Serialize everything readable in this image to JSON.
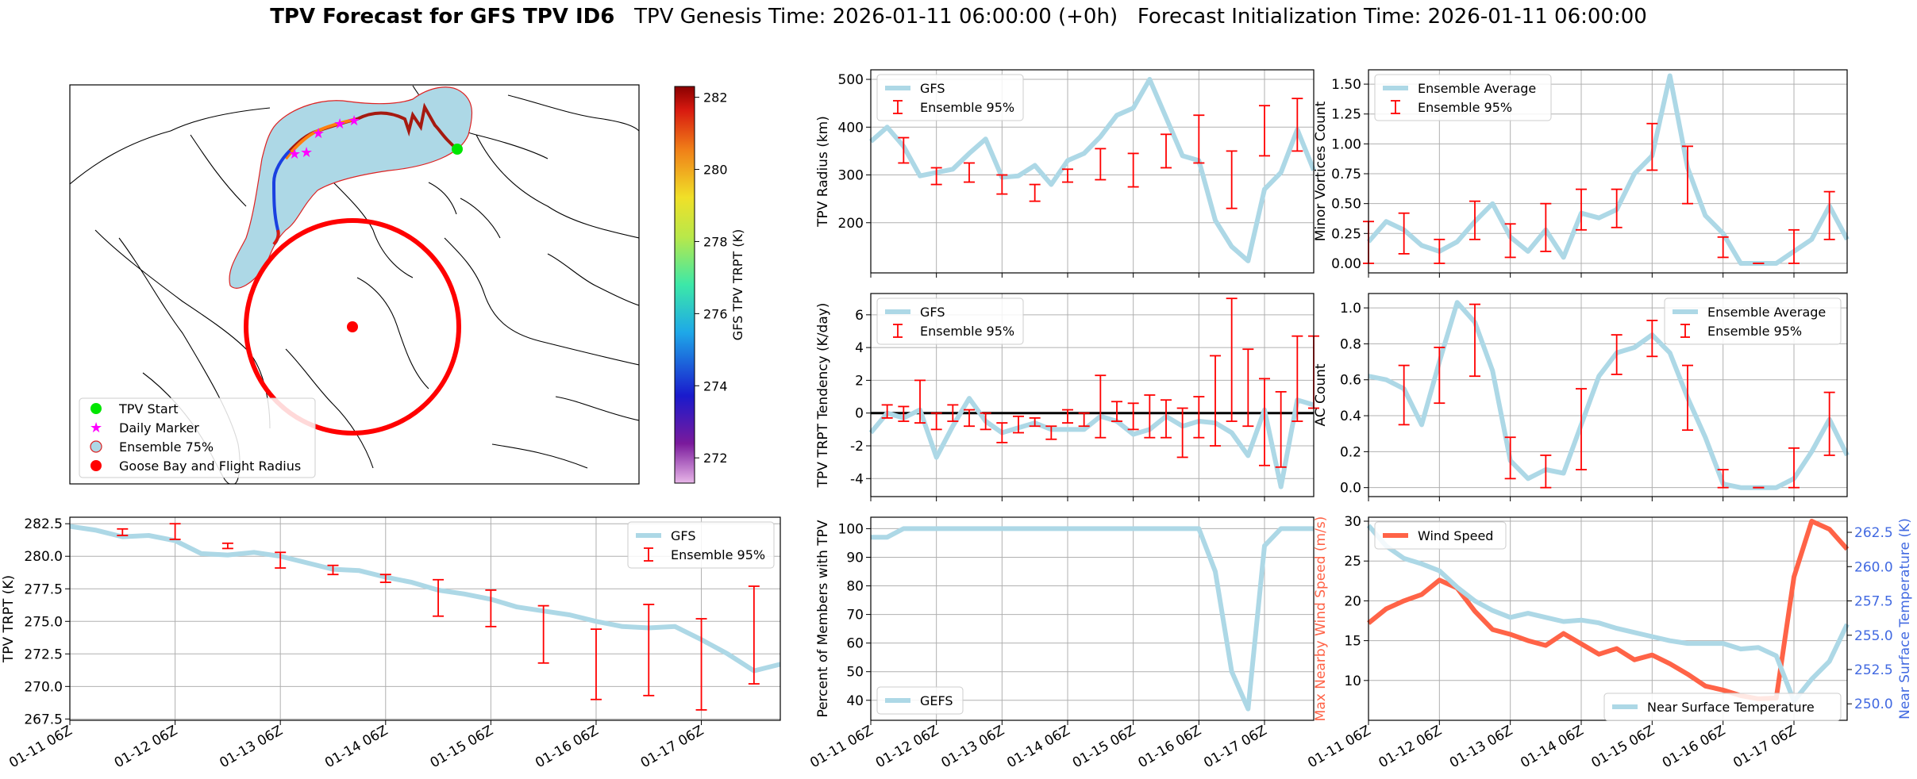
{
  "title": {
    "bold": "TPV Forecast for GFS TPV ID6",
    "genesis": "TPV Genesis Time: 2026-01-11 06:00:00 (+0h)",
    "init": "Forecast Initialization Time: 2026-01-11 06:00:00"
  },
  "colors": {
    "gfs": "#add8e6",
    "ensemble": "#ff0000",
    "wind": "#ff6347",
    "temp_axis": "#4169e1",
    "map_fill": "#add8e6",
    "grid": "#b0b0b0"
  },
  "map_panel": {
    "colorbar_label": "GFS TPV TRPT (K)",
    "colorbar_ticks": [
      272,
      274,
      276,
      278,
      280,
      282
    ],
    "legend": [
      "TPV Start",
      "Daily Marker",
      "Ensemble 75%",
      "Goose Bay and Flight Radius"
    ]
  },
  "chart_data": [
    {
      "id": "trpt",
      "type": "line",
      "title": "",
      "ylabel": "TPV TRPT (K)",
      "xlabel": "",
      "x_ticks": [
        "01-11 06Z",
        "01-12 06Z",
        "01-13 06Z",
        "01-14 06Z",
        "01-15 06Z",
        "01-16 06Z",
        "01-17 06Z"
      ],
      "xlim": [
        0,
        27
      ],
      "ylim": [
        267.4,
        283.0
      ],
      "y_ticks": [
        "267.5",
        "270.0",
        "272.5",
        "275.0",
        "277.5",
        "280.0",
        "282.5"
      ],
      "grid": true,
      "legend_position": "top-right",
      "series": [
        {
          "name": "GFS",
          "x": [
            0,
            1,
            2,
            3,
            4,
            5,
            6,
            7,
            8,
            9,
            10,
            11,
            12,
            13,
            14,
            15,
            16,
            17,
            18,
            19,
            20,
            21,
            22,
            23,
            24,
            25,
            26,
            27
          ],
          "values": [
            282.3,
            282.0,
            281.5,
            281.6,
            281.2,
            280.2,
            280.1,
            280.3,
            280.0,
            279.5,
            279.0,
            278.9,
            278.4,
            278.0,
            277.4,
            277.1,
            276.7,
            276.1,
            275.8,
            275.5,
            275.0,
            274.6,
            274.5,
            274.6,
            273.6,
            272.5,
            271.2,
            271.7
          ]
        }
      ],
      "ensemble": {
        "name": "Ensemble 95%",
        "x": [
          2,
          4,
          6,
          8,
          10,
          12,
          14,
          16,
          18,
          20,
          22,
          24,
          26
        ],
        "low": [
          281.6,
          281.3,
          280.6,
          279.1,
          278.6,
          278.0,
          275.4,
          274.6,
          271.8,
          269.0,
          269.3,
          268.2,
          270.2
        ],
        "high": [
          282.1,
          282.5,
          281.0,
          280.3,
          279.3,
          278.6,
          278.2,
          277.4,
          276.2,
          274.4,
          276.3,
          275.2,
          277.7
        ]
      }
    },
    {
      "id": "radius",
      "type": "line",
      "title": "",
      "ylabel": "TPV Radius (km)",
      "xlabel": "",
      "xlim": [
        0,
        27
      ],
      "ylim": [
        95,
        520
      ],
      "y_ticks": [
        "200",
        "300",
        "400",
        "500"
      ],
      "grid": true,
      "legend_position": "top-left",
      "series": [
        {
          "name": "GFS",
          "x": [
            0,
            1,
            2,
            3,
            4,
            5,
            6,
            7,
            8,
            9,
            10,
            11,
            12,
            13,
            14,
            15,
            16,
            17,
            18,
            19,
            20,
            21,
            22,
            23,
            24,
            25,
            26,
            27
          ],
          "values": [
            370,
            400,
            360,
            298,
            305,
            312,
            345,
            375,
            295,
            298,
            320,
            280,
            330,
            345,
            380,
            425,
            440,
            500,
            420,
            340,
            330,
            205,
            150,
            120,
            270,
            305,
            395,
            310
          ]
        }
      ],
      "ensemble": {
        "name": "Ensemble 95%",
        "x": [
          2,
          4,
          6,
          8,
          10,
          12,
          14,
          16,
          18,
          20,
          22,
          24,
          26
        ],
        "low": [
          325,
          280,
          285,
          260,
          245,
          285,
          290,
          275,
          315,
          325,
          230,
          340,
          350
        ],
        "high": [
          378,
          315,
          325,
          300,
          280,
          312,
          355,
          345,
          385,
          425,
          350,
          445,
          460
        ]
      }
    },
    {
      "id": "minor",
      "type": "line",
      "title": "",
      "ylabel": "Minor Vortices Count",
      "xlabel": "",
      "xlim": [
        0,
        27
      ],
      "ylim": [
        -0.08,
        1.62
      ],
      "y_ticks": [
        "0.00",
        "0.25",
        "0.50",
        "0.75",
        "1.00",
        "1.25",
        "1.50"
      ],
      "grid": true,
      "legend_position": "top-left",
      "series": [
        {
          "name": "Ensemble Average",
          "x": [
            0,
            1,
            2,
            3,
            4,
            5,
            6,
            7,
            8,
            9,
            10,
            11,
            12,
            13,
            14,
            15,
            16,
            17,
            18,
            19,
            20,
            21,
            22,
            23,
            24,
            25,
            26,
            27
          ],
          "values": [
            0.18,
            0.35,
            0.28,
            0.15,
            0.1,
            0.18,
            0.35,
            0.5,
            0.22,
            0.1,
            0.28,
            0.05,
            0.42,
            0.38,
            0.45,
            0.75,
            0.9,
            1.57,
            0.8,
            0.4,
            0.25,
            0.0,
            0.0,
            0.0,
            0.1,
            0.2,
            0.48,
            0.2
          ]
        }
      ],
      "ensemble": {
        "name": "Ensemble 95%",
        "x": [
          0,
          2,
          4,
          6,
          8,
          10,
          12,
          14,
          16,
          18,
          20,
          22,
          24,
          26
        ],
        "low": [
          0.0,
          0.08,
          0.0,
          0.2,
          0.05,
          0.1,
          0.28,
          0.3,
          0.78,
          0.5,
          0.05,
          0.0,
          0.0,
          0.2
        ],
        "high": [
          0.35,
          0.42,
          0.2,
          0.52,
          0.33,
          0.5,
          0.62,
          0.62,
          1.17,
          0.98,
          0.22,
          0.0,
          0.28,
          0.6
        ]
      }
    },
    {
      "id": "tendency",
      "type": "line",
      "title": "",
      "ylabel": "TPV TRPT Tendency (K/day)",
      "xlabel": "",
      "xlim": [
        0,
        27
      ],
      "ylim": [
        -5.1,
        7.3
      ],
      "y_ticks": [
        "-4",
        "-2",
        "0",
        "2",
        "4",
        "6"
      ],
      "grid": true,
      "legend_position": "top-left",
      "zero_line": true,
      "series": [
        {
          "name": "GFS",
          "x": [
            0,
            1,
            2,
            3,
            4,
            5,
            6,
            7,
            8,
            9,
            10,
            11,
            12,
            13,
            14,
            15,
            16,
            17,
            18,
            19,
            20,
            21,
            22,
            23,
            24,
            25,
            26,
            27
          ],
          "values": [
            -1.2,
            0.0,
            -0.3,
            0.2,
            -2.7,
            -0.8,
            0.9,
            -0.5,
            -1.2,
            -0.9,
            -0.6,
            -1.0,
            -1.0,
            -1.0,
            -0.2,
            -0.5,
            -1.3,
            -1.0,
            -0.2,
            -0.8,
            -0.5,
            -0.6,
            -1.2,
            -2.6,
            0.2,
            -4.5,
            0.8,
            0.5
          ]
        }
      ],
      "ensemble": {
        "name": "Ensemble 95%",
        "x": [
          1,
          2,
          3,
          4,
          5,
          6,
          7,
          8,
          9,
          10,
          11,
          12,
          13,
          14,
          15,
          16,
          17,
          18,
          19,
          20,
          21,
          22,
          23,
          24,
          25,
          26,
          27
        ],
        "low": [
          -0.3,
          -0.5,
          -0.6,
          -1.0,
          -0.5,
          -0.8,
          -1.0,
          -1.8,
          -1.2,
          -0.8,
          -1.6,
          -0.6,
          -0.8,
          -1.5,
          -0.5,
          -1.0,
          -1.5,
          -1.5,
          -2.7,
          -1.5,
          -2.0,
          -0.5,
          -0.8,
          -3.2,
          -3.3,
          -0.5,
          0.3
        ],
        "high": [
          0.5,
          0.4,
          2.0,
          0.0,
          0.5,
          0.2,
          0.0,
          -0.6,
          -0.2,
          -0.3,
          -0.8,
          0.2,
          0.0,
          2.3,
          0.7,
          0.6,
          1.1,
          0.8,
          0.3,
          1.0,
          3.5,
          7.0,
          3.9,
          2.1,
          1.3,
          4.7,
          4.7
        ]
      }
    },
    {
      "id": "ac",
      "type": "line",
      "title": "",
      "ylabel": "AC Count",
      "xlabel": "",
      "xlim": [
        0,
        27
      ],
      "ylim": [
        -0.05,
        1.08
      ],
      "y_ticks": [
        "0.0",
        "0.2",
        "0.4",
        "0.6",
        "0.8",
        "1.0"
      ],
      "grid": true,
      "legend_position": "top-right",
      "series": [
        {
          "name": "Ensemble Average",
          "x": [
            0,
            1,
            2,
            3,
            4,
            5,
            6,
            7,
            8,
            9,
            10,
            11,
            12,
            13,
            14,
            15,
            16,
            17,
            18,
            19,
            20,
            21,
            22,
            23,
            24,
            25,
            26,
            27
          ],
          "values": [
            0.62,
            0.6,
            0.55,
            0.35,
            0.7,
            1.03,
            0.92,
            0.65,
            0.15,
            0.05,
            0.1,
            0.08,
            0.35,
            0.62,
            0.75,
            0.78,
            0.85,
            0.75,
            0.5,
            0.28,
            0.02,
            0.0,
            0.0,
            0.0,
            0.05,
            0.2,
            0.38,
            0.18
          ]
        }
      ],
      "ensemble": {
        "name": "Ensemble 95%",
        "x": [
          2,
          4,
          6,
          8,
          10,
          12,
          14,
          16,
          18,
          20,
          22,
          24,
          26
        ],
        "low": [
          0.35,
          0.47,
          0.62,
          0.05,
          0.0,
          0.1,
          0.63,
          0.73,
          0.32,
          0.0,
          0.0,
          0.0,
          0.18
        ],
        "high": [
          0.68,
          0.78,
          1.02,
          0.28,
          0.18,
          0.55,
          0.85,
          0.93,
          0.68,
          0.1,
          0.0,
          0.22,
          0.53
        ]
      }
    },
    {
      "id": "percent",
      "type": "line",
      "title": "",
      "ylabel": "Percent of Members with TPV",
      "xlabel": "",
      "x_ticks": [
        "01-11 06Z",
        "01-12 06Z",
        "01-13 06Z",
        "01-14 06Z",
        "01-15 06Z",
        "01-16 06Z",
        "01-17 06Z"
      ],
      "xlim": [
        0,
        27
      ],
      "ylim": [
        33,
        104
      ],
      "y_ticks": [
        "40",
        "50",
        "60",
        "70",
        "80",
        "90",
        "100"
      ],
      "grid": true,
      "legend_position": "bottom-left",
      "series": [
        {
          "name": "GEFS",
          "x": [
            0,
            1,
            2,
            3,
            4,
            5,
            6,
            7,
            8,
            9,
            10,
            11,
            12,
            13,
            14,
            15,
            16,
            17,
            18,
            19,
            20,
            21,
            22,
            23,
            24,
            25,
            26,
            27
          ],
          "values": [
            97,
            97,
            100,
            100,
            100,
            100,
            100,
            100,
            100,
            100,
            100,
            100,
            100,
            100,
            100,
            100,
            100,
            100,
            100,
            100,
            100,
            85,
            50,
            37,
            94,
            100,
            100,
            100
          ]
        }
      ]
    },
    {
      "id": "wind_temp",
      "type": "line",
      "title": "",
      "ylabel": "Max Nearby Wind Speed (m/s)",
      "ylabel_right": "Near Surface Temperature (K)",
      "xlabel": "",
      "x_ticks": [
        "01-11 06Z",
        "01-12 06Z",
        "01-13 06Z",
        "01-14 06Z",
        "01-15 06Z",
        "01-16 06Z",
        "01-17 06Z"
      ],
      "xlim": [
        0,
        27
      ],
      "ylim": [
        5,
        30.5
      ],
      "y_ticks": [
        "10",
        "15",
        "20",
        "25",
        "30"
      ],
      "ylim_right": [
        248.8,
        263.6
      ],
      "y_ticks_right": [
        "250.0",
        "252.5",
        "255.0",
        "257.5",
        "260.0",
        "262.5"
      ],
      "grid": true,
      "legend_position": "top-left / bottom-right",
      "series": [
        {
          "name": "Wind Speed",
          "axis": "left",
          "x": [
            0,
            1,
            2,
            3,
            4,
            5,
            6,
            7,
            8,
            9,
            10,
            11,
            12,
            13,
            14,
            15,
            16,
            17,
            18,
            19,
            20,
            21,
            22,
            23,
            24,
            25,
            26,
            27
          ],
          "values": [
            17.2,
            19.0,
            20.0,
            20.8,
            22.6,
            21.6,
            18.7,
            16.4,
            15.8,
            15.0,
            14.4,
            15.9,
            14.6,
            13.3,
            14.0,
            12.6,
            13.2,
            12.1,
            10.8,
            9.3,
            8.8,
            8.1,
            7.7,
            7.8,
            23.0,
            30.0,
            29.0,
            26.5
          ]
        },
        {
          "name": "Near Surface Temperature",
          "axis": "right",
          "x": [
            0,
            1,
            2,
            3,
            4,
            5,
            6,
            7,
            8,
            9,
            10,
            11,
            12,
            13,
            14,
            15,
            16,
            17,
            18,
            19,
            20,
            21,
            22,
            23,
            24,
            25,
            26,
            27
          ],
          "values": [
            263.0,
            261.5,
            260.6,
            260.2,
            259.7,
            258.5,
            257.5,
            256.8,
            256.3,
            256.6,
            256.3,
            256.0,
            256.1,
            255.9,
            255.5,
            255.2,
            254.9,
            254.6,
            254.4,
            254.4,
            254.4,
            254.0,
            254.1,
            253.5,
            250.2,
            251.8,
            253.1,
            255.8
          ]
        }
      ]
    }
  ]
}
